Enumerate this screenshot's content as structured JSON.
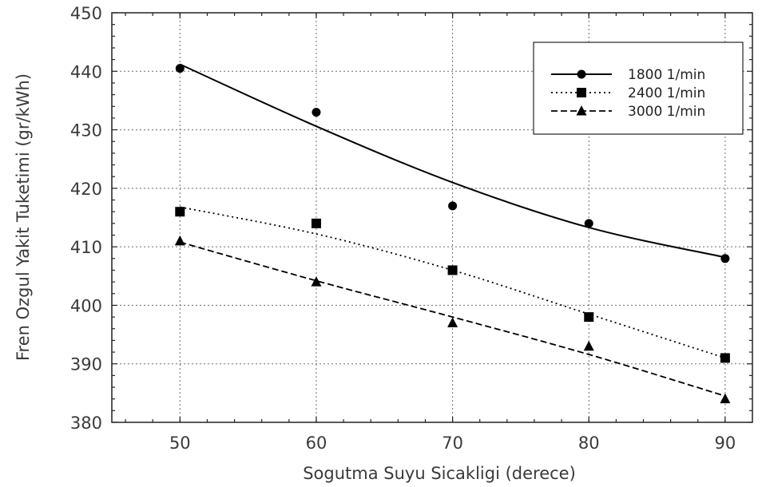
{
  "chart_data": {
    "type": "line",
    "xlabel": "Sogutma Suyu Sicakligi (derece)",
    "ylabel": "Fren Ozgul Yakit Tuketimi (gr/kWh)",
    "xlim": [
      45,
      92
    ],
    "ylim": [
      380,
      450
    ],
    "x_ticks": [
      50,
      60,
      70,
      80,
      90
    ],
    "y_ticks": [
      380,
      390,
      400,
      410,
      420,
      430,
      440,
      450
    ],
    "x_tick_labels": [
      "50",
      "60",
      "70",
      "80",
      "90"
    ],
    "y_tick_labels": [
      "380",
      "390",
      "400",
      "410",
      "420",
      "430",
      "440",
      "450"
    ],
    "grid": true,
    "legend_position": "top-right",
    "x": [
      50,
      60,
      70,
      80,
      90
    ],
    "series": [
      {
        "name": "1800 1/min",
        "marker": "circle",
        "line_style": "solid",
        "values": [
          440.5,
          433,
          417,
          414,
          408
        ],
        "fit": [
          441.2,
          430.6,
          421.0,
          413.3,
          408.2
        ]
      },
      {
        "name": "2400 1/min",
        "marker": "square",
        "line_style": "dotted",
        "values": [
          416,
          414,
          406,
          398,
          391
        ],
        "fit": [
          416.8,
          412.2,
          406.0,
          398.5,
          391.0
        ]
      },
      {
        "name": "3000 1/min",
        "marker": "triangle",
        "line_style": "dashed",
        "values": [
          411,
          404,
          397,
          393,
          384
        ],
        "fit": [
          410.8,
          404.2,
          398.0,
          391.6,
          384.5
        ]
      }
    ]
  }
}
